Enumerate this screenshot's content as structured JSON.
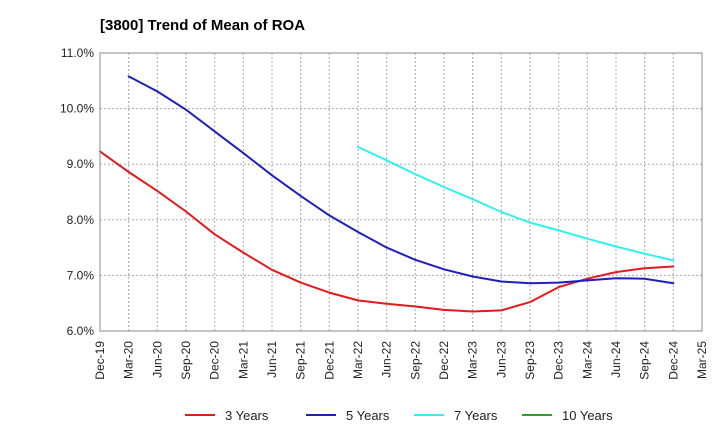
{
  "chart_data": {
    "type": "line",
    "title": "[3800]  Trend of Mean of ROA",
    "xlabel": "",
    "ylabel": "",
    "ylim": [
      6.0,
      11.0
    ],
    "ytick_values": [
      6.0,
      7.0,
      8.0,
      9.0,
      10.0,
      11.0
    ],
    "ytick_labels": [
      "6.0%",
      "7.0%",
      "8.0%",
      "9.0%",
      "10.0%",
      "11.0%"
    ],
    "categories": [
      "Dec-19",
      "Mar-20",
      "Jun-20",
      "Sep-20",
      "Dec-20",
      "Mar-21",
      "Jun-21",
      "Sep-21",
      "Dec-21",
      "Mar-22",
      "Jun-22",
      "Sep-22",
      "Dec-22",
      "Mar-23",
      "Jun-23",
      "Sep-23",
      "Dec-23",
      "Mar-24",
      "Jun-24",
      "Sep-24",
      "Dec-24",
      "Mar-25"
    ],
    "grid": true,
    "legend_position": "bottom",
    "series": [
      {
        "name": "3 Years",
        "color": "#e31a1c",
        "values": [
          9.23,
          8.86,
          8.52,
          8.15,
          7.74,
          7.41,
          7.1,
          6.87,
          6.69,
          6.55,
          6.49,
          6.44,
          6.38,
          6.35,
          6.37,
          6.52,
          6.79,
          6.94,
          7.06,
          7.13,
          7.16,
          null
        ]
      },
      {
        "name": "5 Years",
        "color": "#1f1fbf",
        "values": [
          null,
          10.58,
          10.31,
          9.98,
          9.59,
          9.2,
          8.8,
          8.43,
          8.08,
          7.78,
          7.5,
          7.28,
          7.11,
          6.98,
          6.89,
          6.86,
          6.87,
          6.91,
          6.95,
          6.94,
          6.86,
          null
        ]
      },
      {
        "name": "7 Years",
        "color": "#33f0f0",
        "values": [
          null,
          null,
          null,
          null,
          null,
          null,
          null,
          null,
          null,
          9.31,
          9.07,
          8.82,
          8.59,
          8.37,
          8.14,
          7.95,
          7.81,
          7.66,
          7.52,
          7.39,
          7.27,
          null
        ]
      },
      {
        "name": "10 Years",
        "color": "#2ca02c",
        "values": [
          null,
          null,
          null,
          null,
          null,
          null,
          null,
          null,
          null,
          null,
          null,
          null,
          null,
          null,
          null,
          null,
          null,
          null,
          null,
          null,
          null,
          null
        ]
      }
    ]
  }
}
